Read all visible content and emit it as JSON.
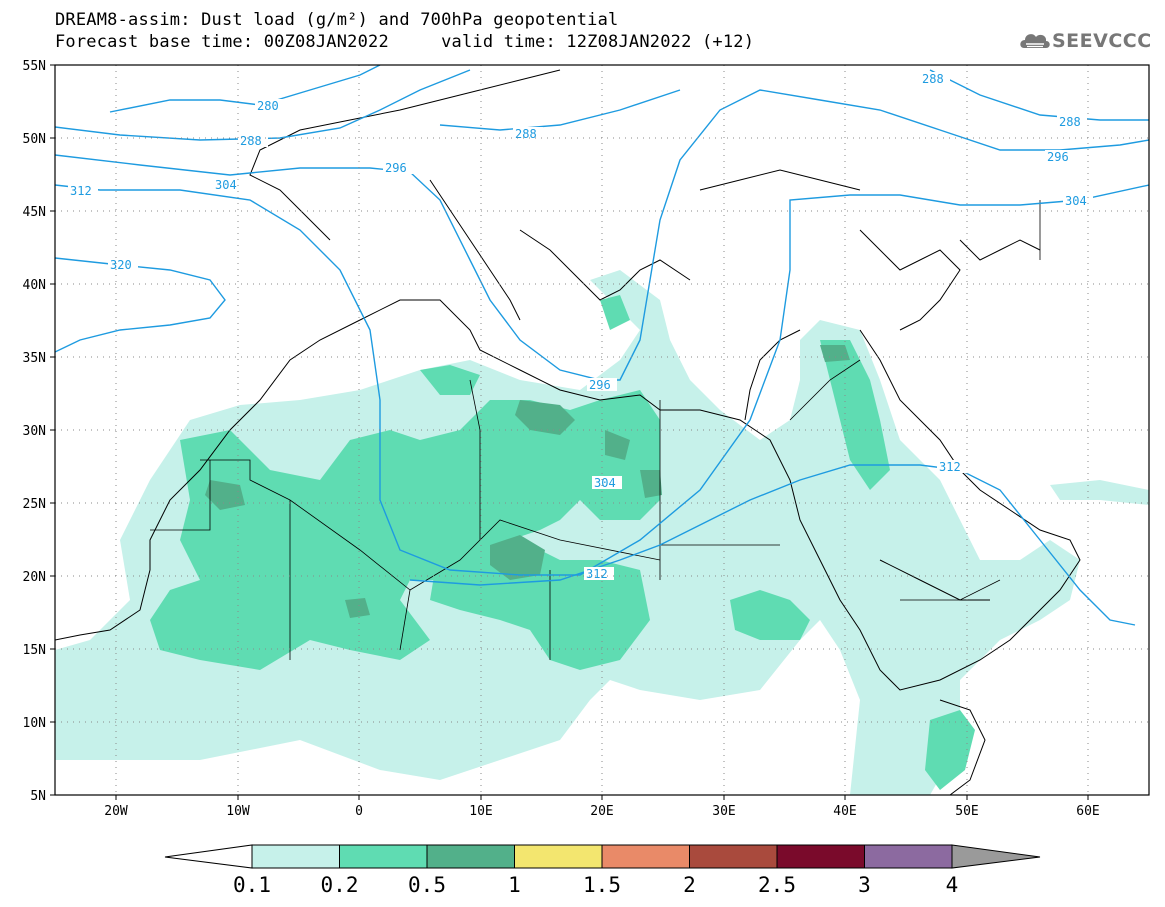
{
  "title": {
    "line1": "DREAM8-assim: Dust load (g/m²) and 700hPa geopotential",
    "line2": "Forecast base time: 00Z08JAN2022     valid time: 12Z08JAN2022 (+12)"
  },
  "logo": {
    "text": "SEEVCCC",
    "icon": "cloud-icon"
  },
  "axes": {
    "lat_ticks": [
      "55N",
      "50N",
      "45N",
      "40N",
      "35N",
      "30N",
      "25N",
      "20N",
      "15N",
      "10N",
      "5N"
    ],
    "lon_ticks": [
      "20W",
      "10W",
      "0",
      "10E",
      "20E",
      "30E",
      "40E",
      "50E",
      "60E"
    ]
  },
  "contours": {
    "labels": [
      {
        "text": "280"
      },
      {
        "text": "288"
      },
      {
        "text": "296"
      },
      {
        "text": "304"
      },
      {
        "text": "312"
      },
      {
        "text": "320"
      },
      {
        "text": "288"
      },
      {
        "text": "296"
      },
      {
        "text": "304"
      },
      {
        "text": "312"
      },
      {
        "text": "288"
      },
      {
        "text": "288"
      },
      {
        "text": "296"
      },
      {
        "text": "304"
      }
    ]
  },
  "colorbar": {
    "labels": [
      "0.1",
      "0.2",
      "0.5",
      "1",
      "1.5",
      "2",
      "2.5",
      "3",
      "4"
    ],
    "colors": [
      "#ffffff",
      "#c6f1ea",
      "#5fdcb2",
      "#52b08a",
      "#f3e66f",
      "#e98a68",
      "#a94a3d",
      "#7a0a2b",
      "#8c6aa0",
      "#9a9a9a"
    ]
  },
  "dust_colors": {
    "light": "#c6f1ea",
    "medium": "#5fdcb2",
    "dark": "#52b08a"
  },
  "contour_color": "#1e9be0"
}
